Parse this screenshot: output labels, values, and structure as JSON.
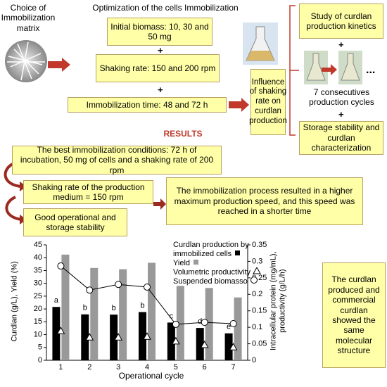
{
  "matrix_label": "Choice of Immobilization matrix",
  "optimization": {
    "title": "Optimization of the cells Immobilization",
    "steps": [
      "Initial biomass: 10, 30 and 50 mg",
      "Shaking rate: 150 and 200 rpm",
      "Immobilization time: 48 and 72 h"
    ],
    "joiner": "+"
  },
  "influence": "Influence of shaking rate on curdlan production",
  "kinetics": {
    "title": "Study of curdlan production kinetics",
    "joiner": "+",
    "ellipsis": "...",
    "cycles": "7 consecutives production cycles",
    "storage": "Storage stability and curdlan characterization"
  },
  "results": {
    "heading": "RESULTS",
    "best": "The best immobilization conditions: 72 h of incubation, 50 mg of cells and a shaking rate of 200 rpm",
    "shaking": "Shaking rate of the production medium = 150 rpm",
    "process": "The immobilization process resulted in a higher maximum production speed, and this speed was reached in a shorter time",
    "stability": "Good operational and storage stability",
    "structure": "The curdlan produced and commercial curdlan showed the same molecular structure"
  },
  "chart_data": {
    "type": "bar",
    "categories": [
      "1",
      "2",
      "3",
      "4",
      "5",
      "6",
      "7"
    ],
    "xlabel": "Operational cycle",
    "ylabel": "Curdlan (g/L), Yield (%)",
    "y2label": "Intracellular protein (mg/mL), productivity (g/L/h)",
    "ylim": [
      0,
      45
    ],
    "yticks": [
      0,
      5,
      10,
      15,
      20,
      25,
      30,
      35,
      40,
      45
    ],
    "y2lim": [
      0,
      0.35
    ],
    "y2ticks": [
      0,
      0.05,
      0.1,
      0.15,
      0.2,
      0.25,
      0.3,
      0.35
    ],
    "series": [
      {
        "name": "Curdlan production by immobilized cells",
        "kind": "bar",
        "color": "#000000",
        "values": [
          20.8,
          17.9,
          17.8,
          18.8,
          14.7,
          12.6,
          10.5
        ],
        "annotations": [
          "a",
          "b",
          "b",
          "b",
          "c",
          "d",
          "e"
        ]
      },
      {
        "name": "Yield",
        "kind": "bar",
        "color": "#999999",
        "values": [
          41.2,
          36,
          35.5,
          38,
          29,
          28.2,
          24.5
        ]
      },
      {
        "name": "Volumetric productivity",
        "kind": "marker",
        "marker": "triangle",
        "axis": "y2",
        "color": "#000000",
        "values": [
          0.089,
          0.07,
          0.07,
          0.072,
          0.058,
          0.047,
          0.04
        ]
      },
      {
        "name": "Suspended biomasso",
        "kind": "line",
        "marker": "circle",
        "axis": "y2",
        "color": "#000000",
        "values": [
          0.286,
          0.213,
          0.23,
          0.222,
          0.109,
          0.115,
          0.111
        ]
      }
    ]
  }
}
